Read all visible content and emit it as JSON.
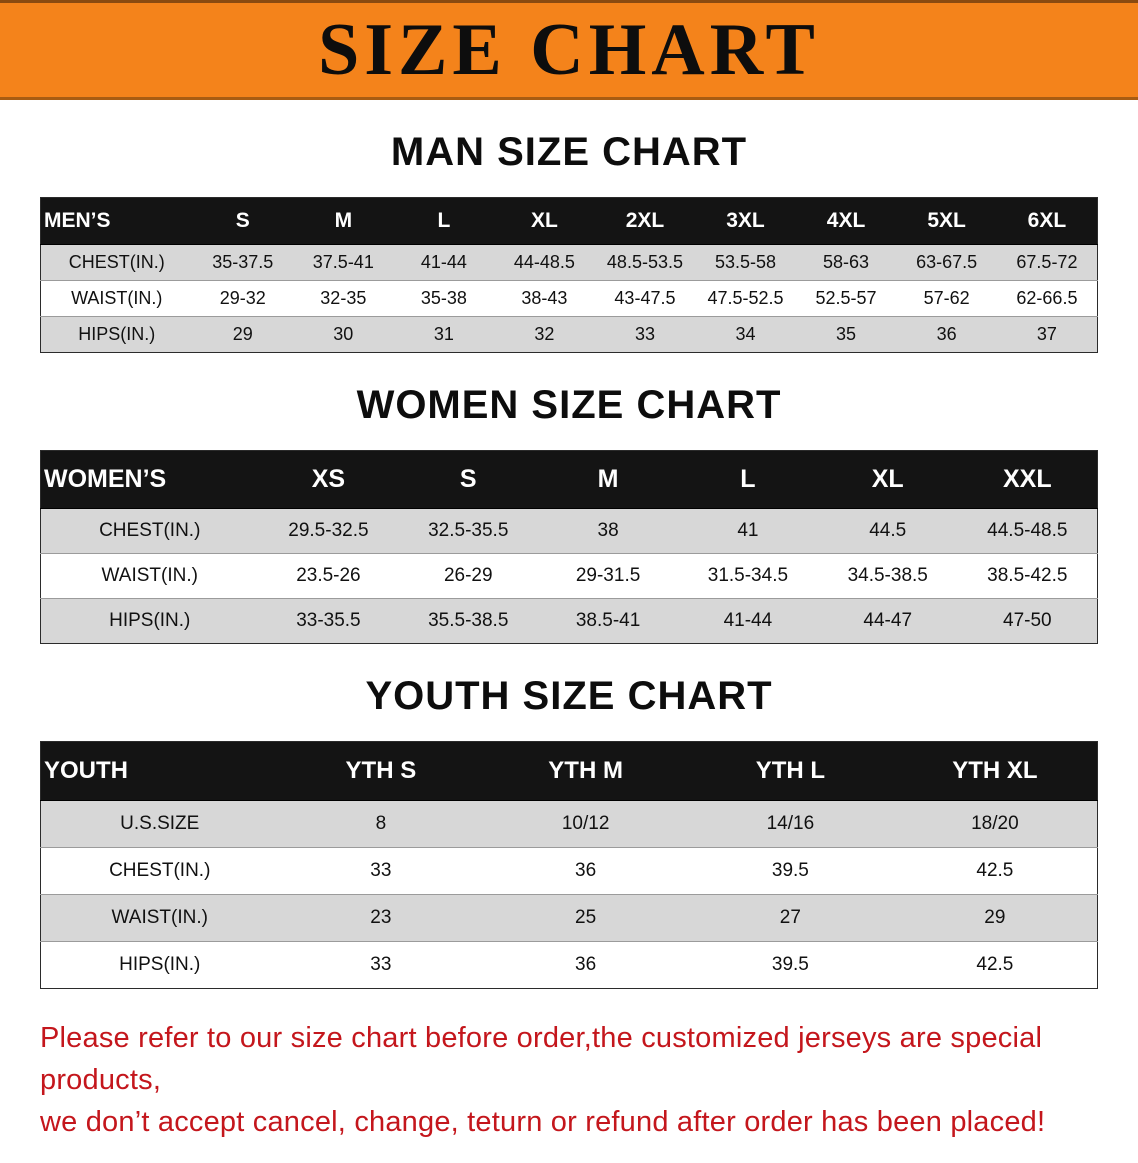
{
  "banner": {
    "title": "SIZE CHART",
    "bg_color": "#F4831B",
    "text_color": "#0D0D0D"
  },
  "sections": [
    {
      "id": "men",
      "heading": "MAN SIZE CHART",
      "table": {
        "header": [
          "MEN’S",
          "S",
          "M",
          "L",
          "XL",
          "2XL",
          "3XL",
          "4XL",
          "5XL",
          "6XL"
        ],
        "rows": [
          [
            "CHEST(IN.)",
            "35-37.5",
            "37.5-41",
            "41-44",
            "44-48.5",
            "48.5-53.5",
            "53.5-58",
            "58-63",
            "63-67.5",
            "67.5-72"
          ],
          [
            "WAIST(IN.)",
            "29-32",
            "32-35",
            "35-38",
            "38-43",
            "43-47.5",
            "47.5-52.5",
            "52.5-57",
            "57-62",
            "62-66.5"
          ],
          [
            "HIPS(IN.)",
            "29",
            "30",
            "31",
            "32",
            "33",
            "34",
            "35",
            "36",
            "37"
          ]
        ]
      }
    },
    {
      "id": "women",
      "heading": "WOMEN SIZE CHART",
      "table": {
        "header": [
          "WOMEN’S",
          "XS",
          "S",
          "M",
          "L",
          "XL",
          "XXL"
        ],
        "rows": [
          [
            "CHEST(IN.)",
            "29.5-32.5",
            "32.5-35.5",
            "38",
            "41",
            "44.5",
            "44.5-48.5"
          ],
          [
            "WAIST(IN.)",
            "23.5-26",
            "26-29",
            "29-31.5",
            "31.5-34.5",
            "34.5-38.5",
            "38.5-42.5"
          ],
          [
            "HIPS(IN.)",
            "33-35.5",
            "35.5-38.5",
            "38.5-41",
            "41-44",
            "44-47",
            "47-50"
          ]
        ]
      }
    },
    {
      "id": "youth",
      "heading": "YOUTH SIZE CHART",
      "table": {
        "header": [
          "YOUTH",
          "YTH S",
          "YTH M",
          "YTH L",
          "YTH XL"
        ],
        "rows": [
          [
            "U.S.SIZE",
            "8",
            "10/12",
            "14/16",
            "18/20"
          ],
          [
            "CHEST(IN.)",
            "33",
            "36",
            "39.5",
            "42.5"
          ],
          [
            "WAIST(IN.)",
            "23",
            "25",
            "27",
            "29"
          ],
          [
            "HIPS(IN.)",
            "33",
            "36",
            "39.5",
            "42.5"
          ]
        ]
      }
    }
  ],
  "notice": {
    "color": "#C4161C",
    "lines": [
      "Please refer to our size chart before order,the customized jerseys are special products,",
      "we don’t accept cancel, change, teturn or refund after order has been placed!"
    ]
  },
  "style_colors": {
    "table_header_bg": "#141414",
    "table_stripe_bg": "#D7D7D7"
  }
}
